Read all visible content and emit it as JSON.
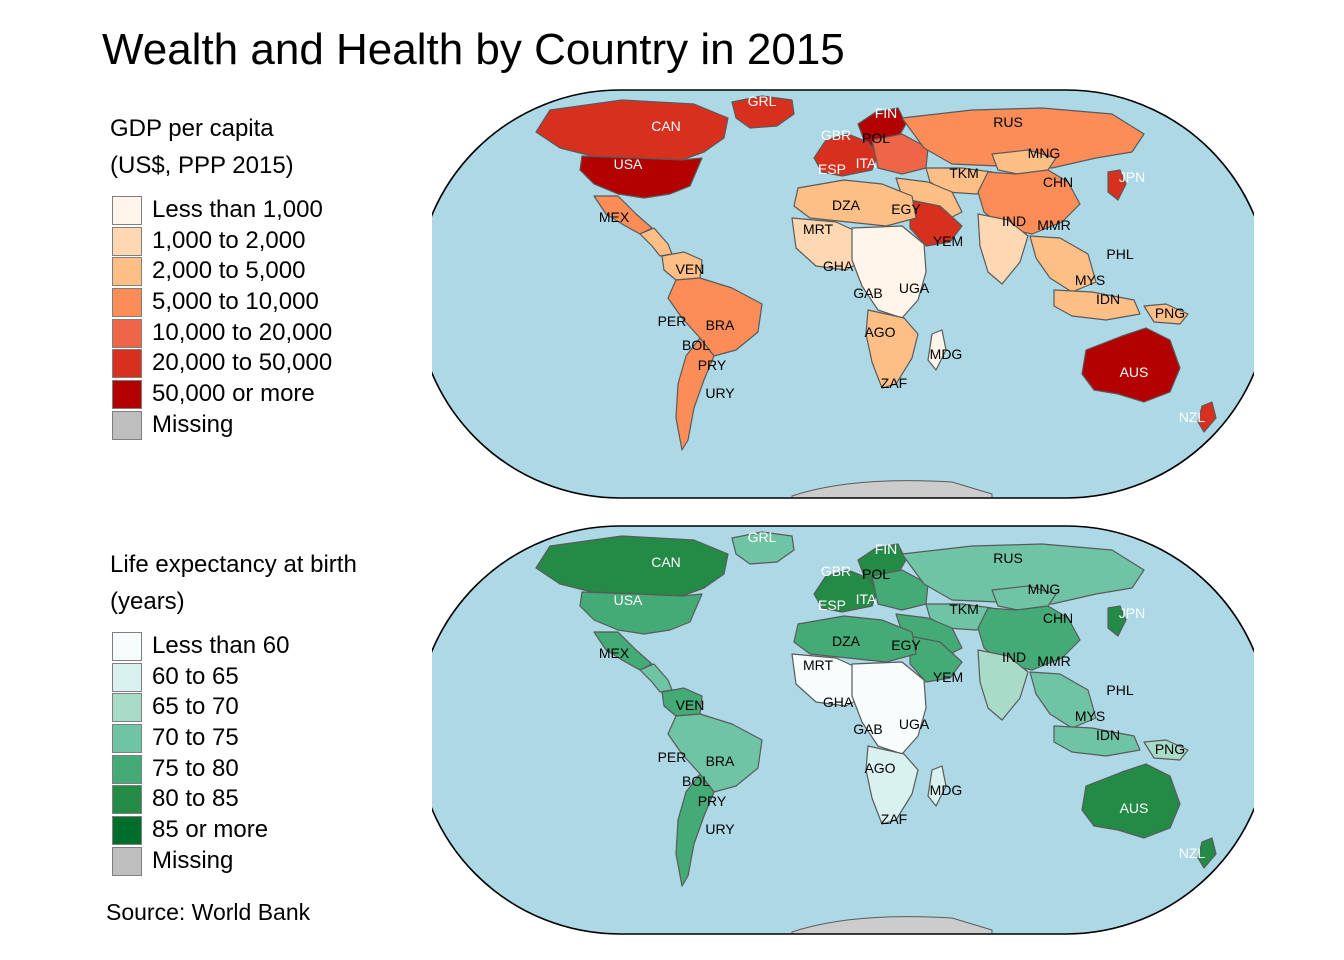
{
  "title": "Wealth and Health by Country in 2015",
  "source": "Source: World Bank",
  "colors": {
    "ocean": "#add8e6",
    "border": "#5a5a5a",
    "antarctica": "#cccccc"
  },
  "legends": {
    "gdp": {
      "title_line1": "GDP per capita",
      "title_line2": "(US$, PPP 2015)",
      "items": [
        {
          "label": "Less than 1,000",
          "color": "#fff5eb"
        },
        {
          "label": "1,000 to 2,000",
          "color": "#fdd8b3"
        },
        {
          "label": "2,000 to 5,000",
          "color": "#fdbf86"
        },
        {
          "label": "5,000 to 10,000",
          "color": "#fc8d59"
        },
        {
          "label": "10,000 to 20,000",
          "color": "#ef6548"
        },
        {
          "label": "20,000 to 50,000",
          "color": "#d7301f"
        },
        {
          "label": "50,000 or more",
          "color": "#b30000"
        },
        {
          "label": "Missing",
          "color": "#bebebe"
        }
      ]
    },
    "life": {
      "title_line1": "Life expectancy at birth",
      "title_line2": "(years)",
      "items": [
        {
          "label": "Less than 60",
          "color": "#f7fcfd"
        },
        {
          "label": "60 to 65",
          "color": "#d9f1ef"
        },
        {
          "label": "65 to 70",
          "color": "#a8dcc8"
        },
        {
          "label": "70 to 75",
          "color": "#70c4a6"
        },
        {
          "label": "75 to 80",
          "color": "#44ab76"
        },
        {
          "label": "80 to 85",
          "color": "#238b45"
        },
        {
          "label": "85 or more",
          "color": "#006d2c"
        },
        {
          "label": "Missing",
          "color": "#bebebe"
        }
      ]
    }
  },
  "country_labels": [
    "GRL",
    "FIN",
    "CAN",
    "RUS",
    "GBR",
    "POL",
    "USA",
    "MNG",
    "ESP",
    "ITA",
    "TKM",
    "CHN",
    "JPN",
    "DZA",
    "EGY",
    "MEX",
    "IND",
    "MMR",
    "MRT",
    "YEM",
    "VEN",
    "PHL",
    "GHA",
    "UGA",
    "MYS",
    "GAB",
    "IDN",
    "PER",
    "BRA",
    "PNG",
    "BOL",
    "AGO",
    "PRY",
    "MDG",
    "AUS",
    "URY",
    "ZAF",
    "NZL"
  ],
  "maps": {
    "gdp": {
      "regions": {
        "greenland": 5,
        "canada": 5,
        "usa": 6,
        "mexico": 3,
        "central_america": 2,
        "south_america": 3,
        "venezuela": 2,
        "argentina": 3,
        "nordic": 6,
        "europe": 5,
        "eastern_europe": 4,
        "russia": 3,
        "central_asia": 2,
        "china": 3,
        "mongolia": 2,
        "japan": 5,
        "middle_east": 2,
        "saudi_arabia": 5,
        "india": 1,
        "southeast_asia": 2,
        "indonesia": 2,
        "png": 2,
        "north_africa": 2,
        "west_africa": 1,
        "central_africa": 0,
        "southern_africa": 2,
        "madagascar": 0,
        "australia": 6,
        "new_zealand": 5
      }
    },
    "life": {
      "regions": {
        "greenland": 3,
        "canada": 5,
        "usa": 4,
        "mexico": 4,
        "central_america": 3,
        "south_america": 3,
        "venezuela": 4,
        "argentina": 4,
        "nordic": 5,
        "europe": 5,
        "eastern_europe": 4,
        "russia": 3,
        "central_asia": 3,
        "china": 4,
        "mongolia": 3,
        "japan": 5,
        "middle_east": 4,
        "saudi_arabia": 4,
        "india": 2,
        "southeast_asia": 3,
        "indonesia": 3,
        "png": 2,
        "north_africa": 4,
        "west_africa": 0,
        "central_africa": 0,
        "southern_africa": 1,
        "madagascar": 1,
        "australia": 5,
        "new_zealand": 5
      }
    }
  }
}
